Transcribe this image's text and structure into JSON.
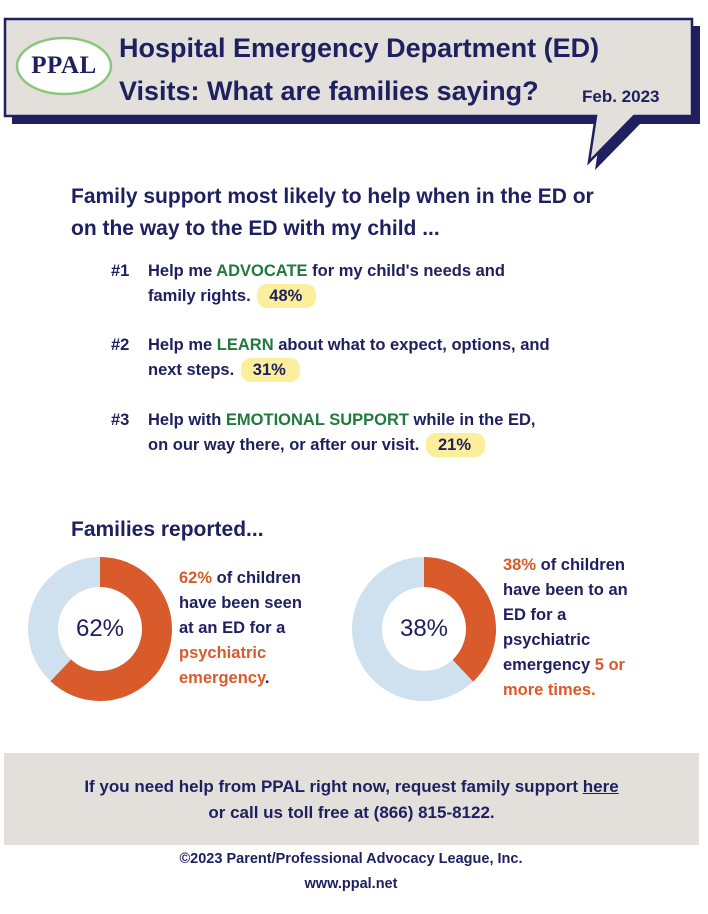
{
  "header": {
    "logo_text": "PPAL",
    "title_line1": "Hospital Emergency Department (ED)",
    "title_line2": "Visits: What are families saying?",
    "date": "Feb. 2023"
  },
  "support": {
    "heading_line1": "Family support most likely to help when in the ED or",
    "heading_line2": "on the way to the ED with my child ...",
    "items": [
      {
        "rank": "#1",
        "pre": "Help me ",
        "keyword": "ADVOCATE",
        "post": " for my child's needs and",
        "line2": "family rights.",
        "percent": "48%"
      },
      {
        "rank": "#2",
        "pre": "Help me ",
        "keyword": "LEARN",
        "post": " about what to expect, options, and",
        "line2": "next steps.",
        "percent": "31%"
      },
      {
        "rank": "#3",
        "pre": "Help with ",
        "keyword": "EMOTIONAL SUPPORT",
        "post": " while in the ED,",
        "line2": "on our way there, or after our visit.",
        "percent": "21%"
      }
    ]
  },
  "families": {
    "heading": "Families reported...",
    "stat1": {
      "percent_label": "62%",
      "value": 62,
      "l1_b": " of children",
      "l2": "have been seen",
      "l3": "at an ED for a",
      "l4": "psychiatric",
      "l5": "emergency",
      "l5_end": "."
    },
    "stat2": {
      "percent_label": "38%",
      "value": 38,
      "l1_b": " of children",
      "l2": "have been to an",
      "l3": "ED for a",
      "l4": "psychiatric",
      "l5": "emergency ",
      "l5_orange": "5 or",
      "l6": "more times."
    }
  },
  "help": {
    "line1_pre": "If you need help from PPAL right now, request family support ",
    "link_text": "here",
    "line2": "or call us toll free at (866) 815-8122."
  },
  "footer": {
    "copyright": "©2023 Parent/Professional Advocacy League, Inc.",
    "website": "www.ppal.net"
  },
  "colors": {
    "navy": "#1f2060",
    "orange": "#d95a2a",
    "light_blue": "#cfe1ef",
    "green": "#1f7a3c",
    "highlight": "#fbef9c",
    "bubble": "#e3e0db"
  }
}
